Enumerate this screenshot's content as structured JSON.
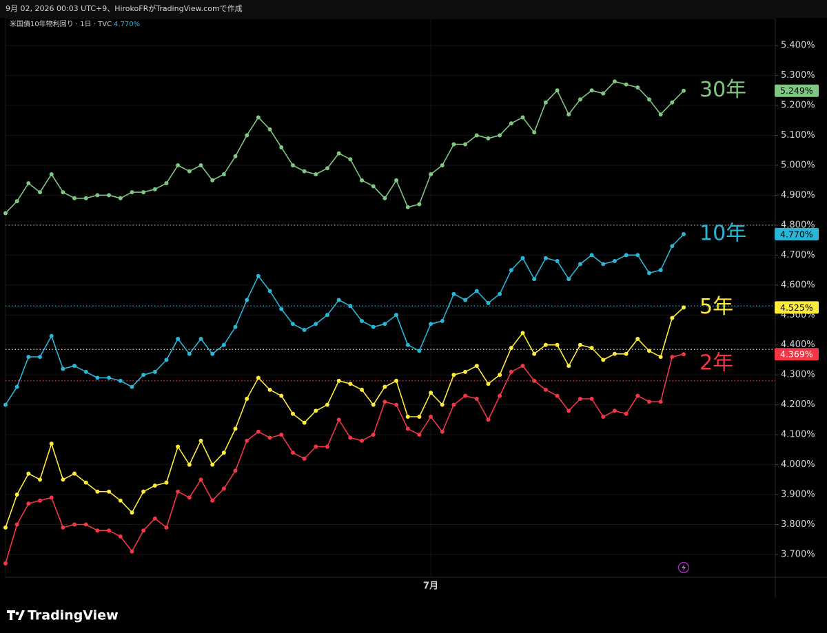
{
  "header": {
    "caption": "9月 02, 2026 00:03 UTC+9、HirokoFRがTradingView.comで作成"
  },
  "chart_data": {
    "type": "line",
    "title": "米国債10年物利回り · 1日 · TVC",
    "categories": [
      null,
      null,
      null,
      null,
      null,
      null,
      null,
      null,
      null,
      null,
      null,
      null,
      null,
      null,
      null,
      null,
      null,
      null,
      null,
      null,
      null,
      null,
      null,
      null,
      null,
      null,
      null,
      null,
      null,
      null,
      null,
      null,
      null,
      null,
      null,
      null,
      null,
      "7月",
      null,
      null,
      null,
      null,
      null,
      null,
      null,
      null,
      null,
      null,
      null,
      null,
      null,
      null,
      null,
      null,
      null,
      null,
      null,
      null,
      null,
      null
    ],
    "ylim": [
      3.624,
      5.49
    ],
    "yticks": [
      {
        "value": 3.7,
        "label": "3.700%"
      },
      {
        "value": 3.8,
        "label": "3.800%"
      },
      {
        "value": 3.9,
        "label": "3.900%"
      },
      {
        "value": 4.0,
        "label": "4.000%"
      },
      {
        "value": 4.1,
        "label": "4.100%"
      },
      {
        "value": 4.2,
        "label": "4.200%"
      },
      {
        "value": 4.3,
        "label": "4.300%"
      },
      {
        "value": 4.4,
        "label": "4.400%"
      },
      {
        "value": 4.5,
        "label": "4.500%"
      },
      {
        "value": 4.6,
        "label": "4.600%"
      },
      {
        "value": 4.7,
        "label": "4.700%"
      },
      {
        "value": 4.8,
        "label": "4.800%"
      },
      {
        "value": 4.9,
        "label": "4.900%"
      },
      {
        "value": 5.0,
        "label": "5.000%"
      },
      {
        "value": 5.1,
        "label": "5.100%"
      },
      {
        "value": 5.2,
        "label": "5.200%"
      },
      {
        "value": 5.3,
        "label": "5.300%"
      },
      {
        "value": 5.4,
        "label": "5.400%"
      }
    ],
    "grid": true,
    "series": [
      {
        "name": "30年",
        "color": "#81c784",
        "values": [
          4.84,
          4.88,
          4.94,
          4.91,
          4.97,
          4.91,
          4.89,
          4.89,
          4.9,
          4.9,
          4.89,
          4.91,
          4.91,
          4.92,
          4.94,
          5.0,
          4.98,
          5.0,
          4.95,
          4.97,
          5.03,
          5.1,
          5.16,
          5.12,
          5.06,
          5.0,
          4.98,
          4.97,
          4.99,
          5.04,
          5.02,
          4.95,
          4.93,
          4.89,
          4.95,
          4.86,
          4.87,
          4.97,
          5.0,
          5.07,
          5.07,
          5.1,
          5.09,
          5.1,
          5.14,
          5.16,
          5.11,
          5.21,
          5.25,
          5.17,
          5.22,
          5.25,
          5.24,
          5.28,
          5.27,
          5.26,
          5.22,
          5.17,
          5.21,
          5.249
        ],
        "last_value_label": {
          "value": 5.249,
          "label": "5.249%"
        }
      },
      {
        "name": "10年",
        "color": "#2bb5d6",
        "values": [
          4.2,
          4.26,
          4.36,
          4.36,
          4.43,
          4.32,
          4.33,
          4.31,
          4.29,
          4.29,
          4.28,
          4.26,
          4.3,
          4.31,
          4.35,
          4.42,
          4.37,
          4.42,
          4.37,
          4.4,
          4.46,
          4.55,
          4.63,
          4.58,
          4.52,
          4.47,
          4.45,
          4.47,
          4.5,
          4.55,
          4.53,
          4.48,
          4.46,
          4.47,
          4.5,
          4.4,
          4.38,
          4.47,
          4.48,
          4.57,
          4.55,
          4.58,
          4.54,
          4.57,
          4.65,
          4.69,
          4.62,
          4.69,
          4.68,
          4.62,
          4.67,
          4.7,
          4.67,
          4.68,
          4.7,
          4.7,
          4.64,
          4.65,
          4.73,
          4.77
        ],
        "last_value_label": {
          "value": 4.77,
          "label": "4.770%"
        }
      },
      {
        "name": "5年",
        "color": "#ffeb3b",
        "values": [
          3.79,
          3.9,
          3.97,
          3.95,
          4.07,
          3.95,
          3.97,
          3.94,
          3.91,
          3.91,
          3.88,
          3.84,
          3.91,
          3.93,
          3.94,
          4.06,
          4.0,
          4.08,
          4.0,
          4.04,
          4.12,
          4.22,
          4.29,
          4.25,
          4.23,
          4.17,
          4.14,
          4.18,
          4.2,
          4.28,
          4.27,
          4.25,
          4.2,
          4.26,
          4.28,
          4.16,
          4.16,
          4.24,
          4.2,
          4.3,
          4.31,
          4.33,
          4.27,
          4.3,
          4.39,
          4.44,
          4.37,
          4.4,
          4.4,
          4.33,
          4.4,
          4.39,
          4.35,
          4.37,
          4.37,
          4.42,
          4.38,
          4.36,
          4.49,
          4.525
        ],
        "last_value_label": {
          "value": 4.525,
          "label": "4.525%"
        }
      },
      {
        "name": "2年",
        "color": "#f23645",
        "values": [
          3.67,
          3.8,
          3.87,
          3.88,
          3.89,
          3.79,
          3.8,
          3.8,
          3.78,
          3.78,
          3.76,
          3.71,
          3.78,
          3.82,
          3.79,
          3.91,
          3.89,
          3.95,
          3.88,
          3.92,
          3.98,
          4.08,
          4.11,
          4.09,
          4.1,
          4.04,
          4.02,
          4.06,
          4.06,
          4.15,
          4.09,
          4.08,
          4.1,
          4.21,
          4.2,
          4.12,
          4.1,
          4.16,
          4.11,
          4.2,
          4.23,
          4.22,
          4.15,
          4.23,
          4.31,
          4.33,
          4.28,
          4.25,
          4.23,
          4.18,
          4.22,
          4.22,
          4.16,
          4.18,
          4.17,
          4.23,
          4.21,
          4.21,
          4.36,
          4.369
        ],
        "last_value_label": {
          "value": 4.369,
          "label": "4.369%"
        }
      }
    ],
    "reference_lines": [
      {
        "value": 4.8,
        "color": "#9e9e9e"
      },
      {
        "value": 4.53,
        "color": "#2bb5d6"
      },
      {
        "value": 4.385,
        "color": "#e0e0e0"
      },
      {
        "value": 4.28,
        "color": "#f23645"
      }
    ]
  },
  "footer": {
    "brand": "TradingView"
  }
}
